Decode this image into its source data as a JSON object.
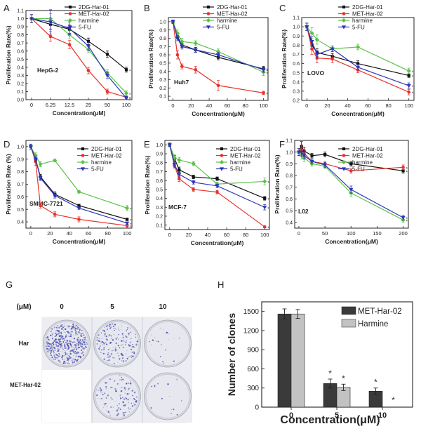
{
  "colors": {
    "2DG-Har-01": "#111111",
    "MET-Har-02": "#e8312b",
    "harmine": "#5cc14a",
    "5-FU": "#2f35b8",
    "bar_met": "#3a3a3a",
    "bar_harmine": "#c2c2c2",
    "dish_bg": "#e7e8ef",
    "colony": "#4b4fae"
  },
  "line_legend": [
    "2DG-Har-01",
    "MET-Har-02",
    "harmine",
    "5-FU"
  ],
  "significance_marker": "*",
  "chart_data": [
    {
      "type": "line",
      "panel_letter": "A",
      "cell_line": "HepG-2",
      "xscale": "categorical",
      "categories": [
        "0",
        "6.25",
        "12.5",
        "25",
        "50",
        "100"
      ],
      "xlabel": "Concentration(μM)",
      "ylabel": "Proliferation Rate(%)",
      "ylim": [
        0.0,
        1.1
      ],
      "yticks": [
        "0.0",
        "0.1",
        "0.2",
        "0.3",
        "0.4",
        "0.5",
        "0.6",
        "0.7",
        "0.8",
        "0.9",
        "1.0",
        "1.1"
      ],
      "series": [
        {
          "name": "2DG-Har-01",
          "values": [
            1.0,
            0.93,
            0.87,
            0.72,
            0.56,
            0.37
          ],
          "errors": [
            0.05,
            0.06,
            0.05,
            0.04,
            0.04,
            0.03
          ]
        },
        {
          "name": "MET-Har-02",
          "values": [
            1.0,
            0.78,
            0.68,
            0.36,
            0.1,
            0.03
          ],
          "errors": [
            0.05,
            0.06,
            0.05,
            0.04,
            0.03,
            0.02
          ]
        },
        {
          "name": "harmine",
          "values": [
            1.0,
            1.0,
            0.8,
            0.62,
            0.33,
            0.08
          ],
          "errors": [
            0.05,
            0.06,
            0.05,
            0.04,
            0.04,
            0.03
          ]
        },
        {
          "name": "5-FU",
          "values": [
            1.0,
            0.96,
            0.88,
            0.66,
            0.3,
            0.02
          ],
          "errors": [
            0.05,
            0.15,
            0.08,
            0.05,
            0.04,
            0.02
          ]
        }
      ]
    },
    {
      "type": "line",
      "panel_letter": "B",
      "cell_line": "Huh7",
      "xscale": "linear",
      "x": [
        0,
        5,
        10,
        25,
        50,
        100
      ],
      "xticks": [
        0,
        20,
        40,
        60,
        80,
        100
      ],
      "xlim": [
        -5,
        105
      ],
      "xlabel": "Concentration(μM)",
      "ylabel": "Proliferation Rate(%)",
      "ylim": [
        0.05,
        1.05
      ],
      "yticks": [
        "0.1",
        "0.2",
        "0.3",
        "0.4",
        "0.5",
        "0.6",
        "0.7",
        "0.8",
        "0.9",
        "1.0"
      ],
      "series": [
        {
          "name": "2DG-Har-01",
          "values": [
            1.0,
            0.82,
            0.72,
            0.66,
            0.57,
            0.43
          ],
          "errors": [
            0.02,
            0.03,
            0.03,
            0.03,
            0.03,
            0.03
          ]
        },
        {
          "name": "MET-Har-02",
          "values": [
            1.0,
            0.6,
            0.46,
            0.42,
            0.23,
            0.14
          ],
          "errors": [
            0.02,
            0.05,
            0.03,
            0.04,
            0.06,
            0.02
          ]
        },
        {
          "name": "harmine",
          "values": [
            1.0,
            0.86,
            0.76,
            0.74,
            0.64,
            0.39
          ],
          "errors": [
            0.02,
            0.04,
            0.04,
            0.03,
            0.03,
            0.04
          ]
        },
        {
          "name": "5-FU",
          "values": [
            1.0,
            0.8,
            0.7,
            0.66,
            0.6,
            0.42
          ],
          "errors": [
            0.02,
            0.03,
            0.03,
            0.03,
            0.03,
            0.03
          ]
        }
      ]
    },
    {
      "type": "line",
      "panel_letter": "C",
      "cell_line": "LOVO",
      "xscale": "linear",
      "x": [
        0,
        5,
        10,
        25,
        50,
        100
      ],
      "xticks": [
        0,
        20,
        40,
        60,
        80,
        100
      ],
      "xlim": [
        -5,
        105
      ],
      "xlabel": "Concentration(μM)",
      "ylabel": "Proliferation Rate(%)",
      "ylim": [
        0.2,
        1.1
      ],
      "yticks": [
        "0.2",
        "0.3",
        "0.4",
        "0.5",
        "0.6",
        "0.7",
        "0.8",
        "0.9",
        "1.0",
        "1.1"
      ],
      "series": [
        {
          "name": "2DG-Har-01",
          "values": [
            1.0,
            0.8,
            0.72,
            0.68,
            0.6,
            0.47
          ],
          "errors": [
            0.04,
            0.05,
            0.04,
            0.03,
            0.03,
            0.02
          ]
        },
        {
          "name": "MET-Har-02",
          "values": [
            1.0,
            0.76,
            0.66,
            0.65,
            0.53,
            0.29
          ],
          "errors": [
            0.04,
            0.06,
            0.05,
            0.04,
            0.03,
            0.03
          ]
        },
        {
          "name": "harmine",
          "values": [
            1.0,
            0.93,
            0.86,
            0.76,
            0.78,
            0.52
          ],
          "errors": [
            0.04,
            0.06,
            0.05,
            0.03,
            0.03,
            0.03
          ]
        },
        {
          "name": "5-FU",
          "values": [
            1.0,
            0.84,
            0.7,
            0.76,
            0.56,
            0.36
          ],
          "errors": [
            0.04,
            0.05,
            0.04,
            0.03,
            0.03,
            0.03
          ]
        }
      ]
    },
    {
      "type": "line",
      "panel_letter": "D",
      "cell_line": "SMMC-7721",
      "xscale": "linear",
      "x": [
        0,
        5,
        10,
        25,
        50,
        100
      ],
      "xticks": [
        0,
        20,
        40,
        60,
        80,
        100
      ],
      "xlim": [
        -5,
        105
      ],
      "xlabel": "Concentration(μM)",
      "ylabel": "Proliferation Rate (%)",
      "ylim": [
        0.35,
        1.05
      ],
      "yticks": [
        "0.4",
        "0.5",
        "0.6",
        "0.7",
        "0.8",
        "0.9",
        "1.0"
      ],
      "series": [
        {
          "name": "2DG-Har-01",
          "values": [
            1.0,
            0.9,
            0.76,
            0.62,
            0.53,
            0.42
          ],
          "errors": [
            0.02,
            0.02,
            0.02,
            0.02,
            0.01,
            0.01
          ]
        },
        {
          "name": "MET-Har-02",
          "values": [
            1.0,
            0.88,
            0.53,
            0.46,
            0.42,
            0.37
          ],
          "errors": [
            0.02,
            0.03,
            0.02,
            0.02,
            0.02,
            0.01
          ]
        },
        {
          "name": "harmine",
          "values": [
            1.0,
            0.93,
            0.86,
            0.89,
            0.64,
            0.51
          ],
          "errors": [
            0.02,
            0.02,
            0.02,
            0.01,
            0.01,
            0.02
          ]
        },
        {
          "name": "5-FU",
          "values": [
            1.0,
            0.9,
            0.75,
            0.61,
            0.51,
            0.39
          ],
          "errors": [
            0.02,
            0.02,
            0.02,
            0.02,
            0.01,
            0.01
          ]
        }
      ]
    },
    {
      "type": "line",
      "panel_letter": "E",
      "cell_line": "MCF-7",
      "xscale": "linear",
      "x": [
        0,
        5,
        10,
        25,
        50,
        100
      ],
      "xticks": [
        0,
        20,
        40,
        60,
        80,
        100
      ],
      "xlim": [
        -5,
        105
      ],
      "xlabel": "Concentration(μM)",
      "ylabel": "Proliferation Rate(%)",
      "ylim": [
        0.05,
        1.05
      ],
      "yticks": [
        "0.1",
        "0.2",
        "0.3",
        "0.4",
        "0.5",
        "0.6",
        "0.7",
        "0.8",
        "0.9",
        "1.0"
      ],
      "series": [
        {
          "name": "2DG-Har-01",
          "values": [
            1.0,
            0.85,
            0.72,
            0.64,
            0.62,
            0.4
          ],
          "errors": [
            0.02,
            0.03,
            0.03,
            0.02,
            0.02,
            0.02
          ]
        },
        {
          "name": "MET-Har-02",
          "values": [
            1.0,
            0.77,
            0.62,
            0.5,
            0.47,
            0.08
          ],
          "errors": [
            0.02,
            0.03,
            0.03,
            0.02,
            0.02,
            0.01
          ]
        },
        {
          "name": "harmine",
          "values": [
            1.0,
            0.86,
            0.83,
            0.79,
            0.56,
            0.59
          ],
          "errors": [
            0.02,
            0.03,
            0.03,
            0.02,
            0.02,
            0.04
          ]
        },
        {
          "name": "5-FU",
          "values": [
            1.0,
            0.78,
            0.67,
            0.58,
            0.54,
            0.3
          ],
          "errors": [
            0.02,
            0.03,
            0.03,
            0.02,
            0.02,
            0.03
          ]
        }
      ]
    },
    {
      "type": "line",
      "panel_letter": "F",
      "cell_line": "L02",
      "xscale": "linear",
      "x": [
        0,
        5,
        10,
        25,
        50,
        100,
        200
      ],
      "xticks": [
        0,
        50,
        100,
        150,
        200
      ],
      "xlim": [
        -8,
        210
      ],
      "xlabel": "Concentration(μM)",
      "ylabel": "Proliferation Rate(%)",
      "ylim": [
        0.35,
        1.1
      ],
      "yticks": [
        "0.4",
        "0.5",
        "0.6",
        "0.7",
        "0.8",
        "0.9",
        "1.0",
        "1.1"
      ],
      "series": [
        {
          "name": "2DG-Har-01",
          "values": [
            1.0,
            1.05,
            1.01,
            0.97,
            0.98,
            0.9,
            0.84
          ],
          "errors": [
            0.03,
            0.04,
            0.03,
            0.02,
            0.02,
            0.02,
            0.02
          ]
        },
        {
          "name": "MET-Har-02",
          "values": [
            1.0,
            1.02,
            0.99,
            0.92,
            0.9,
            0.84,
            0.87
          ],
          "errors": [
            0.03,
            0.04,
            0.03,
            0.02,
            0.02,
            0.02,
            0.02
          ]
        },
        {
          "name": "harmine",
          "values": [
            1.0,
            0.98,
            0.95,
            0.9,
            0.88,
            0.65,
            0.42
          ],
          "errors": [
            0.03,
            0.04,
            0.03,
            0.02,
            0.02,
            0.03,
            0.02
          ]
        },
        {
          "name": "5-FU",
          "values": [
            1.0,
            1.0,
            0.97,
            0.92,
            0.89,
            0.68,
            0.44
          ],
          "errors": [
            0.03,
            0.04,
            0.03,
            0.02,
            0.02,
            0.03,
            0.02
          ]
        }
      ]
    },
    {
      "type": "bar",
      "panel_letter": "H",
      "categories": [
        "0",
        "5",
        "10"
      ],
      "xlabel": "Concentration(μM)",
      "ylabel": "Number of clones",
      "ylim": [
        0,
        1650
      ],
      "yticks": [
        "0",
        "300",
        "600",
        "900",
        "1200",
        "1500"
      ],
      "legend": [
        "MET-Har-02",
        "Harmine"
      ],
      "series": [
        {
          "name": "MET-Har-02",
          "values": [
            1460,
            370,
            250
          ],
          "errors": [
            80,
            70,
            50
          ],
          "significant": [
            false,
            true,
            true
          ]
        },
        {
          "name": "Harmine",
          "values": [
            1460,
            310,
            0
          ],
          "errors": [
            70,
            50,
            0
          ],
          "significant": [
            false,
            true,
            true
          ]
        }
      ]
    }
  ],
  "panel_g": {
    "letter": "G",
    "unit_label": "(μM)",
    "column_labels": [
      "0",
      "5",
      "10"
    ],
    "row_labels": [
      "Har",
      "MET-Har-02"
    ],
    "dishes": [
      {
        "row": 0,
        "col": 0,
        "density": 0.95
      },
      {
        "row": 0,
        "col": 1,
        "density": 0.32
      },
      {
        "row": 0,
        "col": 2,
        "density": 0.03
      },
      {
        "row": 1,
        "col": 1,
        "density": 0.22
      },
      {
        "row": 1,
        "col": 2,
        "density": 0.02
      }
    ]
  }
}
